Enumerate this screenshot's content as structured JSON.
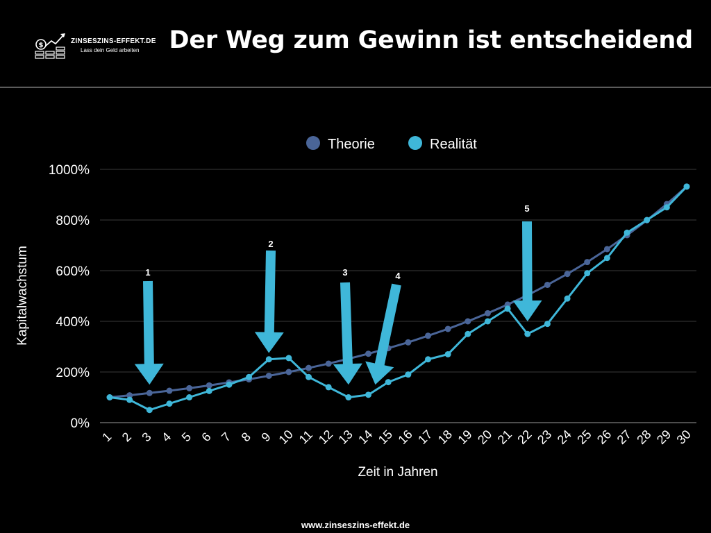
{
  "header": {
    "brand_name": "ZINSESZINS-EFFEKT.DE",
    "brand_tagline": "Lass dein Geld arbeiten",
    "title": "Der Weg zum Gewinn ist entscheidend"
  },
  "footer": {
    "url": "www.zinseszins-effekt.de"
  },
  "colors": {
    "background": "#000000",
    "theorie": "#4a6598",
    "realitaet": "#3fb7d9",
    "grid": "#3a3a3a",
    "text": "#ffffff"
  },
  "chart_data": {
    "type": "line",
    "title": "",
    "xlabel": "Zeit in Jahren",
    "ylabel": "Kapitalwachstum",
    "ylim": [
      0,
      1000
    ],
    "yticks": [
      0,
      200,
      400,
      600,
      800,
      1000
    ],
    "ytick_labels": [
      "0%",
      "200%",
      "400%",
      "600%",
      "800%",
      "1000%"
    ],
    "legend_position": "top-center",
    "grid": true,
    "x": [
      1,
      2,
      3,
      4,
      5,
      6,
      7,
      8,
      9,
      10,
      11,
      12,
      13,
      14,
      15,
      16,
      17,
      18,
      19,
      20,
      21,
      22,
      23,
      24,
      25,
      26,
      27,
      28,
      29,
      30
    ],
    "series": [
      {
        "name": "Theorie",
        "color": "#4a6598",
        "values": [
          100,
          108,
          117,
          126,
          136,
          147,
          159,
          171,
          185,
          200,
          216,
          233,
          252,
          272,
          294,
          317,
          343,
          370,
          400,
          432,
          466,
          503,
          544,
          587,
          634,
          685,
          740,
          799,
          863,
          932
        ]
      },
      {
        "name": "Realität",
        "color": "#3fb7d9",
        "values": [
          100,
          90,
          50,
          75,
          100,
          125,
          150,
          180,
          250,
          255,
          180,
          140,
          100,
          110,
          160,
          190,
          250,
          270,
          350,
          400,
          450,
          350,
          390,
          490,
          590,
          650,
          750,
          800,
          850,
          932
        ]
      }
    ],
    "annotations": [
      {
        "label": "1",
        "x": 3,
        "y": 150
      },
      {
        "label": "2",
        "x": 9,
        "y": 275
      },
      {
        "label": "3",
        "x": 13,
        "y": 150
      },
      {
        "label": "4",
        "x": 14,
        "y": 150
      },
      {
        "label": "5",
        "x": 22,
        "y": 400
      }
    ]
  }
}
